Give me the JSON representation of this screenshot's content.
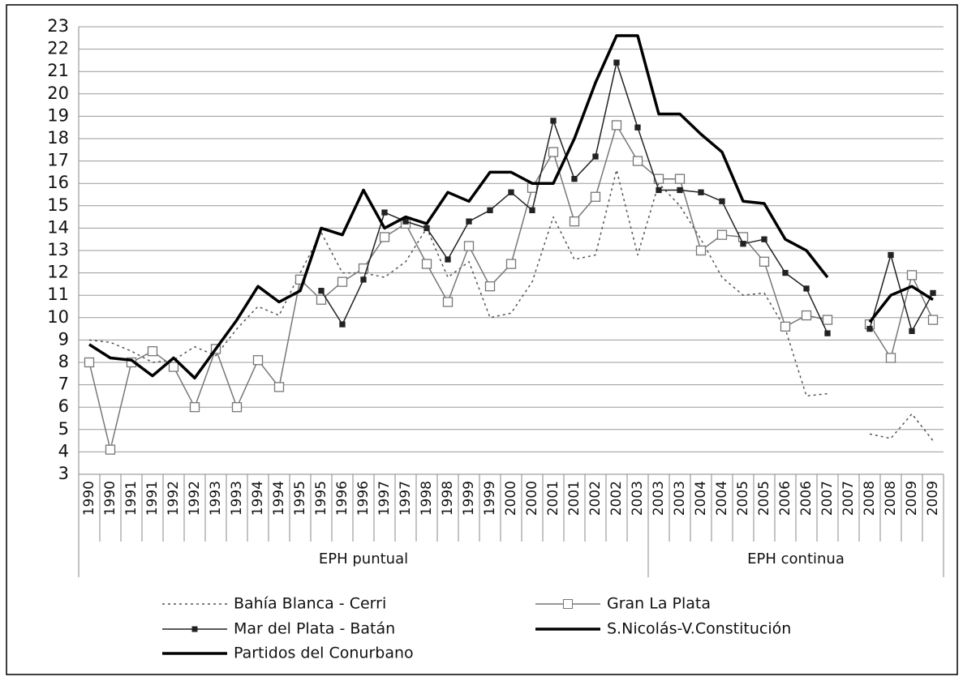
{
  "chart_data": {
    "type": "line",
    "categories": [
      "1990",
      "1990",
      "1991",
      "1991",
      "1992",
      "1992",
      "1993",
      "1993",
      "1994",
      "1994",
      "1995",
      "1995",
      "1996",
      "1996",
      "1997",
      "1997",
      "1998",
      "1998",
      "1999",
      "1999",
      "2000",
      "2000",
      "2001",
      "2001",
      "2002",
      "2002",
      "2003",
      "2003",
      "2003",
      "2004",
      "2004",
      "2005",
      "2005",
      "2006",
      "2006",
      "2007",
      "2007",
      "2008",
      "2008",
      "2009",
      "2009"
    ],
    "category_groups": [
      "EPH puntual",
      "EPH puntual",
      "EPH puntual",
      "EPH puntual",
      "EPH puntual",
      "EPH puntual",
      "EPH puntual",
      "EPH puntual",
      "EPH puntual",
      "EPH puntual",
      "EPH puntual",
      "EPH puntual",
      "EPH puntual",
      "EPH puntual",
      "EPH puntual",
      "EPH puntual",
      "EPH puntual",
      "EPH puntual",
      "EPH puntual",
      "EPH puntual",
      "EPH puntual",
      "EPH puntual",
      "EPH puntual",
      "EPH puntual",
      "EPH puntual",
      "EPH puntual",
      "EPH puntual",
      "EPH continua",
      "EPH continua",
      "EPH continua",
      "EPH continua",
      "EPH continua",
      "EPH continua",
      "EPH continua",
      "EPH continua",
      "EPH continua",
      "EPH continua",
      "EPH continua",
      "EPH continua",
      "EPH continua",
      "EPH continua"
    ],
    "series": [
      {
        "name": "Bahía Blanca - Cerri",
        "color": "#555555",
        "dash": "3,4",
        "width": 1.5,
        "marker": "none",
        "values": [
          9.0,
          8.9,
          8.5,
          8.0,
          8.1,
          8.7,
          8.3,
          9.5,
          10.5,
          10.1,
          12.0,
          13.8,
          12.0,
          12.0,
          11.8,
          12.5,
          14.0,
          11.8,
          12.5,
          10.0,
          10.2,
          11.6,
          14.5,
          12.6,
          12.8,
          16.6,
          12.8,
          16.0,
          15.0,
          13.5,
          11.8,
          11.0,
          11.1,
          9.5,
          6.5,
          6.6,
          null,
          4.8,
          4.6,
          5.7,
          4.5
        ]
      },
      {
        "name": "Gran La Plata",
        "color": "#777777",
        "dash": "none",
        "width": 1.5,
        "marker": "square-open",
        "values": [
          8.0,
          4.1,
          8.0,
          8.5,
          7.8,
          6.0,
          8.6,
          6.0,
          8.1,
          6.9,
          11.7,
          10.8,
          11.6,
          12.2,
          13.6,
          14.2,
          12.4,
          10.7,
          13.2,
          11.4,
          12.4,
          15.8,
          17.4,
          14.3,
          15.4,
          18.6,
          17.0,
          16.2,
          16.2,
          13.0,
          13.7,
          13.6,
          12.5,
          9.6,
          10.1,
          9.9,
          null,
          9.7,
          8.2,
          11.9,
          9.9
        ]
      },
      {
        "name": "Mar del Plata - Batán",
        "color": "#222222",
        "dash": "none",
        "width": 1.5,
        "marker": "square-filled",
        "values": [
          null,
          null,
          null,
          null,
          null,
          null,
          null,
          null,
          null,
          null,
          null,
          11.2,
          9.7,
          11.7,
          14.7,
          14.3,
          14.0,
          12.6,
          14.3,
          14.8,
          15.6,
          14.8,
          18.8,
          16.2,
          17.2,
          21.4,
          18.5,
          15.7,
          15.7,
          15.6,
          15.2,
          13.3,
          13.5,
          12.0,
          11.3,
          9.3,
          null,
          9.5,
          12.8,
          9.4,
          11.1
        ]
      },
      {
        "name": "S.Nicolás-V.Constitución",
        "color": "#000000",
        "dash": "none",
        "width": 3.5,
        "marker": "none",
        "values": [
          null,
          null,
          null,
          null,
          null,
          null,
          null,
          null,
          null,
          null,
          null,
          null,
          null,
          null,
          null,
          null,
          null,
          null,
          null,
          null,
          null,
          null,
          null,
          null,
          null,
          null,
          null,
          null,
          null,
          null,
          null,
          null,
          null,
          null,
          null,
          null,
          null,
          9.8,
          11.0,
          11.4,
          10.8
        ]
      },
      {
        "name": "Partidos del Conurbano",
        "color": "#000000",
        "dash": "none",
        "width": 3.5,
        "marker": "none",
        "values": [
          8.8,
          8.2,
          8.1,
          7.4,
          8.2,
          7.3,
          8.6,
          9.9,
          11.4,
          10.7,
          11.2,
          14.0,
          13.7,
          15.7,
          14.0,
          14.5,
          14.2,
          15.6,
          15.2,
          16.5,
          16.5,
          16.0,
          16.0,
          18.0,
          20.5,
          22.6,
          22.6,
          19.1,
          19.1,
          18.2,
          17.4,
          15.2,
          15.1,
          13.5,
          13.0,
          11.8,
          null,
          null,
          null,
          null,
          null
        ]
      }
    ],
    "ylim": [
      3,
      23
    ],
    "yticks": [
      3,
      4,
      5,
      6,
      7,
      8,
      9,
      10,
      11,
      12,
      13,
      14,
      15,
      16,
      17,
      18,
      19,
      20,
      21,
      22,
      23
    ],
    "grid": true
  }
}
